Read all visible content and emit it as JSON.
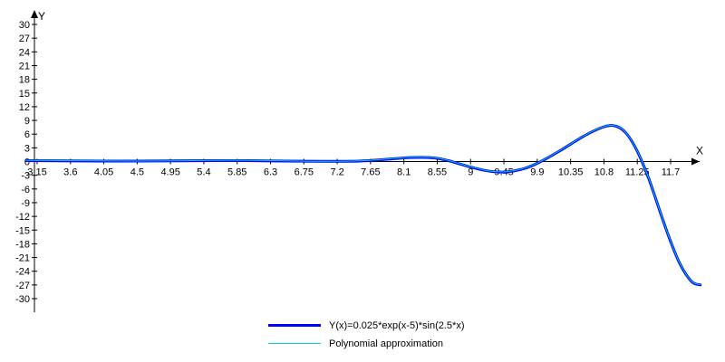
{
  "chart_data": {
    "type": "line",
    "xlabel": "X",
    "ylabel": "Y",
    "xlim": [
      2.95,
      12.3
    ],
    "ylim": [
      -31.5,
      31.5
    ],
    "x_ticks": [
      3.15,
      3.6,
      4.05,
      4.5,
      4.95,
      5.4,
      5.85,
      6.3,
      6.75,
      7.2,
      7.65,
      8.1,
      8.55,
      9,
      9.45,
      9.9,
      10.35,
      10.8,
      11.25,
      11.7
    ],
    "x_tick_labels": [
      "3.15",
      "3.6",
      "4.05",
      "4.5",
      "4.95",
      "5.4",
      "5.85",
      "6.3",
      "6.75",
      "7.2",
      "7.65",
      "8.1",
      "8.55",
      "9",
      "9.45",
      "9.9",
      "10.35",
      "10.8",
      "11.25",
      "11.7"
    ],
    "y_ticks": [
      30,
      27,
      24,
      21,
      18,
      15,
      12,
      9,
      6,
      3,
      0,
      -3,
      -6,
      -9,
      -12,
      -15,
      -18,
      -21,
      -24,
      -27,
      -30
    ],
    "y_tick_labels": [
      "30",
      "27",
      "24",
      "21",
      "18",
      "15",
      "12",
      "9",
      "6",
      "3",
      "0",
      "-3",
      "-6",
      "-9",
      "-12",
      "-15",
      "-18",
      "-21",
      "-24",
      "-27",
      "-30"
    ],
    "grid": false,
    "legend_position": "bottom-center",
    "series": [
      {
        "name": "Y(x)=0.025*exp(x-5)*sin(2.5*x)",
        "color": "#0000ff",
        "x": [
          3.0,
          3.5,
          4.0,
          4.5,
          5.0,
          5.5,
          6.0,
          6.5,
          7.0,
          7.5,
          7.8,
          8.1,
          8.25,
          8.4,
          8.55,
          8.7,
          8.85,
          9.0,
          9.15,
          9.3,
          9.45,
          9.6,
          9.75,
          9.9,
          10.05,
          10.2,
          10.35,
          10.5,
          10.65,
          10.8,
          10.9,
          11.0,
          11.1,
          11.2,
          11.3,
          11.4,
          11.5,
          11.6,
          11.7,
          11.8,
          11.9,
          12.0,
          12.1
        ],
        "y": [
          0.2,
          0.15,
          0.1,
          0.1,
          0.15,
          0.2,
          0.2,
          0.1,
          0.05,
          0.1,
          0.4,
          0.8,
          0.9,
          0.9,
          0.7,
          0.2,
          -0.5,
          -1.2,
          -1.8,
          -2.2,
          -2.3,
          -2.0,
          -1.4,
          -0.4,
          0.9,
          2.3,
          3.8,
          5.3,
          6.6,
          7.6,
          7.9,
          7.5,
          6.2,
          3.8,
          0.5,
          -3.5,
          -8.2,
          -13.0,
          -17.5,
          -21.5,
          -24.5,
          -26.5,
          -27.0
        ]
      },
      {
        "name": "Polynomial approximation",
        "color": "#00d0d0",
        "x": [
          3.0,
          3.5,
          4.0,
          4.5,
          5.0,
          5.5,
          6.0,
          6.5,
          7.0,
          7.5,
          7.8,
          8.1,
          8.25,
          8.4,
          8.55,
          8.7,
          8.85,
          9.0,
          9.15,
          9.3,
          9.45,
          9.6,
          9.75,
          9.9,
          10.05,
          10.2,
          10.35,
          10.5,
          10.65,
          10.8,
          10.9,
          11.0,
          11.1,
          11.2,
          11.3,
          11.4,
          11.5,
          11.6,
          11.7,
          11.8,
          11.9,
          12.0,
          12.1
        ],
        "y": [
          0.25,
          0.2,
          0.15,
          0.1,
          0.15,
          0.25,
          0.25,
          0.15,
          0.05,
          0.15,
          0.45,
          0.85,
          0.95,
          0.95,
          0.75,
          0.25,
          -0.45,
          -1.15,
          -1.75,
          -2.15,
          -2.25,
          -1.95,
          -1.35,
          -0.35,
          0.95,
          2.35,
          3.85,
          5.35,
          6.65,
          7.65,
          7.95,
          7.55,
          6.25,
          3.85,
          0.55,
          -3.45,
          -8.15,
          -12.95,
          -17.45,
          -21.45,
          -24.45,
          -26.45,
          -26.95
        ]
      }
    ]
  }
}
